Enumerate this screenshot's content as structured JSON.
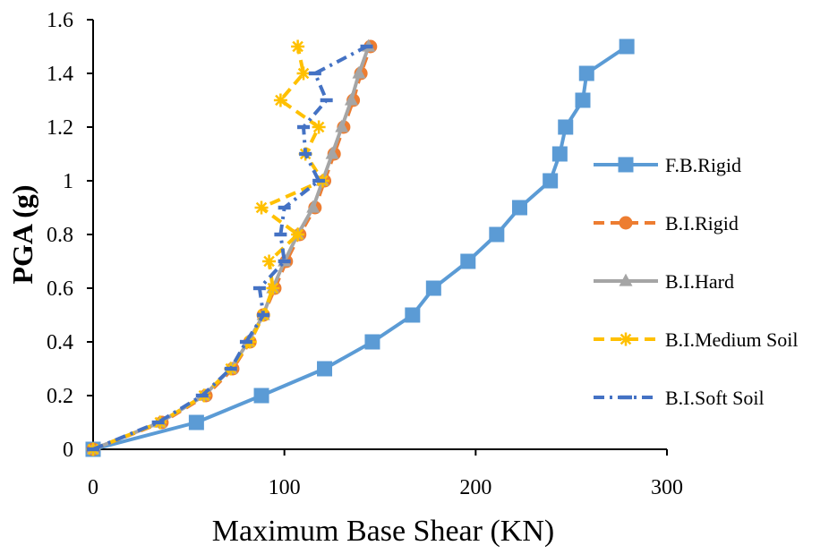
{
  "chart_data": {
    "type": "line",
    "xlabel": "Maximum Base Shear (KN)",
    "ylabel": "PGA (g)",
    "xlim": [
      0,
      300
    ],
    "ylim": [
      0,
      1.6
    ],
    "xticks": [
      0,
      100,
      200,
      300
    ],
    "yticks": [
      0,
      0.2,
      0.4,
      0.6,
      0.8,
      1,
      1.2,
      1.4,
      1.6
    ],
    "grid": false,
    "legend_position": "right",
    "series": [
      {
        "name": "F.B.Rigid",
        "color": "#5B9BD5",
        "line_style": "solid",
        "marker": "square",
        "x": [
          0,
          54,
          88,
          121,
          146,
          167,
          178,
          196,
          211,
          223,
          239,
          244,
          247,
          256,
          258,
          279
        ],
        "y": [
          0,
          0.1,
          0.2,
          0.3,
          0.4,
          0.5,
          0.6,
          0.7,
          0.8,
          0.9,
          1.0,
          1.1,
          1.2,
          1.3,
          1.4,
          1.5
        ]
      },
      {
        "name": "B.I.Rigid",
        "color": "#ED7D31",
        "line_style": "dashed",
        "marker": "circle",
        "x": [
          0,
          36,
          59,
          73,
          82,
          89,
          95,
          101,
          108,
          116,
          121,
          126,
          131,
          136,
          140,
          145
        ],
        "y": [
          0,
          0.1,
          0.2,
          0.3,
          0.4,
          0.5,
          0.6,
          0.7,
          0.8,
          0.9,
          1.0,
          1.1,
          1.2,
          1.3,
          1.4,
          1.5
        ]
      },
      {
        "name": "B.I.Hard",
        "color": "#A5A5A5",
        "line_style": "solid",
        "marker": "triangle",
        "x": [
          0,
          35,
          58,
          72,
          81,
          89,
          94,
          100,
          107,
          115,
          120,
          125,
          130,
          135,
          139,
          144
        ],
        "y": [
          0,
          0.1,
          0.2,
          0.3,
          0.4,
          0.5,
          0.6,
          0.7,
          0.8,
          0.9,
          1.0,
          1.1,
          1.2,
          1.3,
          1.4,
          1.5
        ]
      },
      {
        "name": "B.I.Medium Soil",
        "color": "#FFC000",
        "line_style": "dashed",
        "marker": "asterisk",
        "x": [
          0,
          35,
          58,
          72,
          82,
          89,
          94,
          92,
          107,
          88,
          120,
          111,
          118,
          98,
          110,
          107
        ],
        "y": [
          0,
          0.1,
          0.2,
          0.3,
          0.4,
          0.5,
          0.6,
          0.7,
          0.8,
          0.9,
          1.0,
          1.1,
          1.2,
          1.3,
          1.4,
          1.5
        ]
      },
      {
        "name": "B.I.Soft Soil",
        "color": "#4472C4",
        "line_style": "dash-dot",
        "marker": "dash",
        "x": [
          0,
          34,
          57,
          72,
          80,
          89,
          87,
          100,
          98,
          100,
          118,
          111,
          110,
          122,
          116,
          143
        ],
        "y": [
          0,
          0.1,
          0.2,
          0.3,
          0.4,
          0.5,
          0.6,
          0.7,
          0.8,
          0.9,
          1.0,
          1.1,
          1.2,
          1.3,
          1.4,
          1.5
        ]
      }
    ]
  }
}
